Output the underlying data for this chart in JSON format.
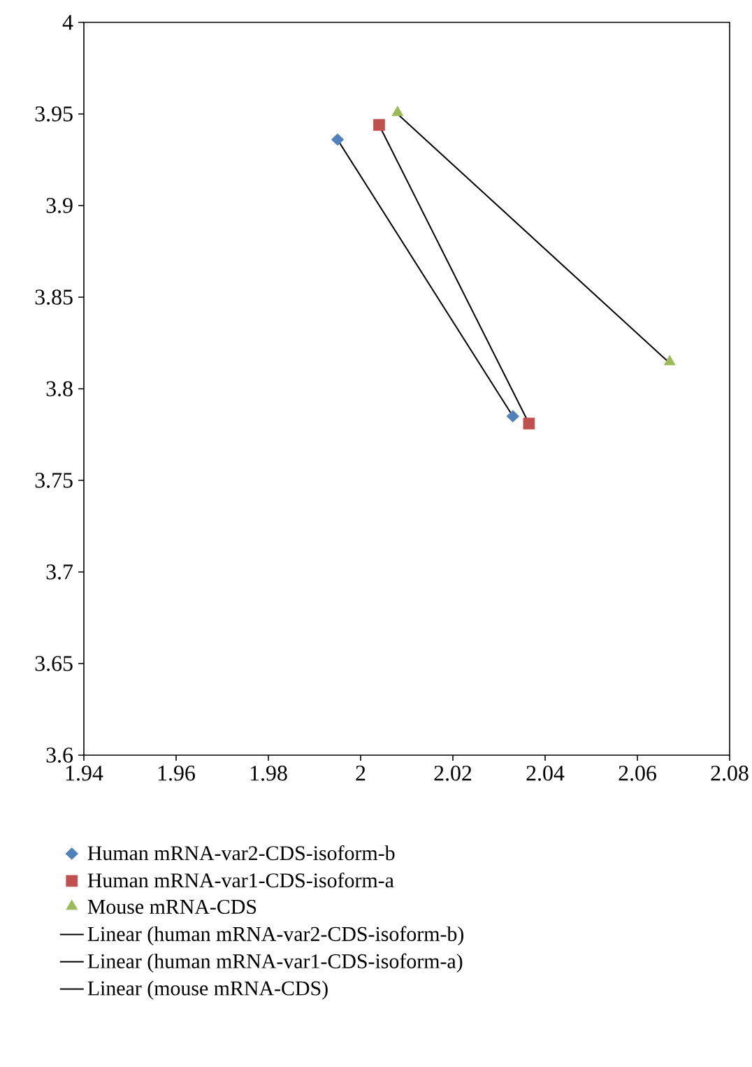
{
  "chart_data": {
    "type": "scatter",
    "xlim": [
      1.94,
      2.08
    ],
    "xticks": [
      1.94,
      1.96,
      1.98,
      2,
      2.02,
      2.04,
      2.06,
      2.08
    ],
    "ylim": [
      3.6,
      4
    ],
    "yticks": [
      3.6,
      3.65,
      3.7,
      3.75,
      3.8,
      3.85,
      3.9,
      3.95,
      4
    ],
    "grid": false,
    "legend": "bottom",
    "series": [
      {
        "name": "Human mRNA-var2-CDS-isoform-b",
        "marker": "diamond",
        "color": "#4f81bd",
        "x": [
          1.995,
          2.033
        ],
        "values": [
          3.936,
          3.785
        ]
      },
      {
        "name": "Human mRNA-var1-CDS-isoform-a",
        "marker": "square",
        "color": "#c0504d",
        "x": [
          2.004,
          2.0365
        ],
        "values": [
          3.944,
          3.781
        ]
      },
      {
        "name": "Mouse mRNA-CDS",
        "marker": "triangle",
        "color": "#9bbb59",
        "x": [
          2.008,
          2.067
        ],
        "values": [
          3.95,
          3.814
        ]
      },
      {
        "name": "Linear (human mRNA-var2-CDS-isoform-b)",
        "type": "line",
        "marker": "none",
        "line_style": "solid",
        "color": "#000000",
        "x": [
          1.995,
          2.033
        ],
        "values": [
          3.936,
          3.785
        ]
      },
      {
        "name": "Linear (human mRNA-var1-CDS-isoform-a)",
        "type": "line",
        "marker": "none",
        "line_style": "solid",
        "color": "#000000",
        "x": [
          2.004,
          2.0365
        ],
        "values": [
          3.944,
          3.781
        ]
      },
      {
        "name": "Linear (mouse mRNA-CDS)",
        "type": "line",
        "marker": "none",
        "line_style": "solid",
        "color": "#000000",
        "x": [
          2.008,
          2.067
        ],
        "values": [
          3.95,
          3.814
        ]
      }
    ]
  }
}
